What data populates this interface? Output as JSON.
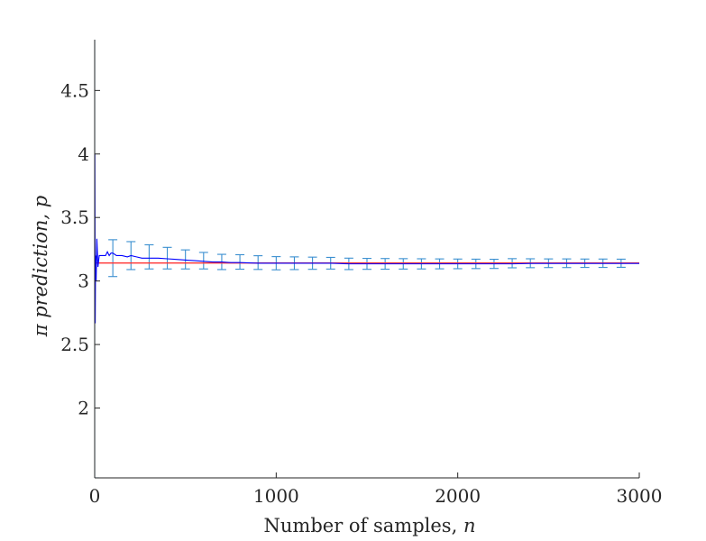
{
  "chart_data": {
    "type": "line",
    "xlabel": "Number of samples, ",
    "xlabel_var": "n",
    "ylabel": "π prediction, ",
    "ylabel_var": "p",
    "xlim": [
      0,
      3000
    ],
    "ylim": [
      1.45,
      4.9
    ],
    "x_ticks": [
      0,
      1000,
      2000,
      3000
    ],
    "x_tick_labels": [
      "0",
      "1000",
      "2000",
      "3000"
    ],
    "y_ticks": [
      2,
      2.5,
      3,
      3.5,
      4,
      4.5
    ],
    "y_tick_labels": [
      "2",
      "2.5",
      "3",
      "3.5",
      "4",
      "4.5"
    ],
    "grid": false,
    "colors": {
      "estimate": "#0000ff",
      "reference": "#ff3333",
      "error_bars": "#3a8fd0",
      "axis": "#262626"
    },
    "reference_line": {
      "value": 3.1416
    },
    "estimate_series": {
      "x": [
        1,
        3,
        5,
        8,
        12,
        18,
        25,
        30,
        40,
        50,
        60,
        70,
        80,
        90,
        100,
        120,
        150,
        180,
        200,
        230,
        260,
        300,
        350,
        400,
        450,
        500,
        550,
        600,
        650,
        700,
        750,
        800,
        900,
        1000,
        1100,
        1200,
        1300,
        1400,
        1500,
        1600,
        1700,
        1800,
        1900,
        2000,
        2100,
        2200,
        2300,
        2400,
        2500,
        2600,
        2700,
        2800,
        2900,
        3000
      ],
      "y": [
        4.0,
        2.667,
        3.2,
        3.0,
        3.333,
        3.111,
        3.2,
        3.2,
        3.2,
        3.2,
        3.2,
        3.23,
        3.2,
        3.22,
        3.22,
        3.2,
        3.2,
        3.19,
        3.2,
        3.19,
        3.18,
        3.18,
        3.18,
        3.175,
        3.17,
        3.165,
        3.16,
        3.155,
        3.15,
        3.15,
        3.145,
        3.145,
        3.14,
        3.14,
        3.14,
        3.14,
        3.14,
        3.135,
        3.135,
        3.135,
        3.135,
        3.135,
        3.135,
        3.135,
        3.135,
        3.135,
        3.135,
        3.138,
        3.138,
        3.138,
        3.138,
        3.138,
        3.138,
        3.138
      ]
    },
    "error_bars": {
      "x": [
        0,
        100,
        200,
        300,
        400,
        500,
        600,
        700,
        800,
        900,
        1000,
        1100,
        1200,
        1300,
        1400,
        1500,
        1600,
        1700,
        1800,
        1900,
        2000,
        2100,
        2200,
        2300,
        2400,
        2500,
        2600,
        2700,
        2800,
        2900
      ],
      "center": [
        3.2,
        3.18,
        3.2,
        3.19,
        3.18,
        3.17,
        3.16,
        3.15,
        3.15,
        3.145,
        3.14,
        3.14,
        3.14,
        3.14,
        3.135,
        3.135,
        3.135,
        3.135,
        3.135,
        3.135,
        3.135,
        3.135,
        3.135,
        3.14,
        3.14,
        3.14,
        3.14,
        3.14,
        3.14,
        3.14
      ],
      "half_width": [
        1.75,
        0.145,
        0.11,
        0.095,
        0.085,
        0.075,
        0.065,
        0.06,
        0.057,
        0.054,
        0.052,
        0.05,
        0.048,
        0.046,
        0.045,
        0.043,
        0.042,
        0.041,
        0.04,
        0.039,
        0.038,
        0.037,
        0.036,
        0.036,
        0.035,
        0.034,
        0.034,
        0.033,
        0.033,
        0.032
      ]
    }
  }
}
